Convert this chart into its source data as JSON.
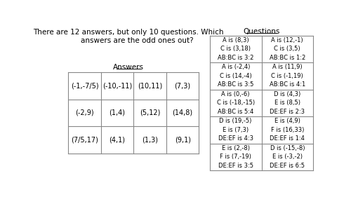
{
  "background_color": "#ffffff",
  "title_text": "There are 12 answers, but only 10 questions. Which\n        answers are the odd ones out?",
  "title_fontsize": 7.5,
  "answers_label": "Answers",
  "answers_grid": [
    [
      "(-1,-7/5)",
      "(-10,-11)",
      "(10,11)",
      "(7,3)"
    ],
    [
      "(-2,9)",
      "(1,4)",
      "(5,12)",
      "(14,8)"
    ],
    [
      "(7/5,17)",
      "(4,1)",
      "(1,3)",
      "(9,1)"
    ]
  ],
  "questions_label": "Questions",
  "questions_grid": [
    [
      "A is (8,3)\nC is (3,18)\nAB:BC is 3:2",
      "A is (12,-1)\nC is (3,5)\nAB:BC is 1:2"
    ],
    [
      "A is (-2,4)\nC is (14,-4)\nAB:BC is 3:5",
      "A is (11,9)\nC is (-1,19)\nAB:BC is 4:1"
    ],
    [
      "A is (0,-6)\nC is (-18,-15)\nAB:BC is 5:4",
      "D is (4,3)\nE is (8,5)\nDE:EF is 2:3"
    ],
    [
      "D is (19,-5)\nE is (7,3)\nDE:EF is 4:3",
      "E is (4,9)\nF is (16,33)\nDE:EF is 1:4"
    ],
    [
      "E is (2,-8)\nF is (7,-19)\nDE:EF is 3:5",
      "D is (-15,-8)\nE is (-3,-2)\nDE:EF is 6:5"
    ]
  ],
  "answers_grid_fontsize": 7.0,
  "questions_grid_fontsize": 6.0,
  "label_fontsize": 7.5
}
